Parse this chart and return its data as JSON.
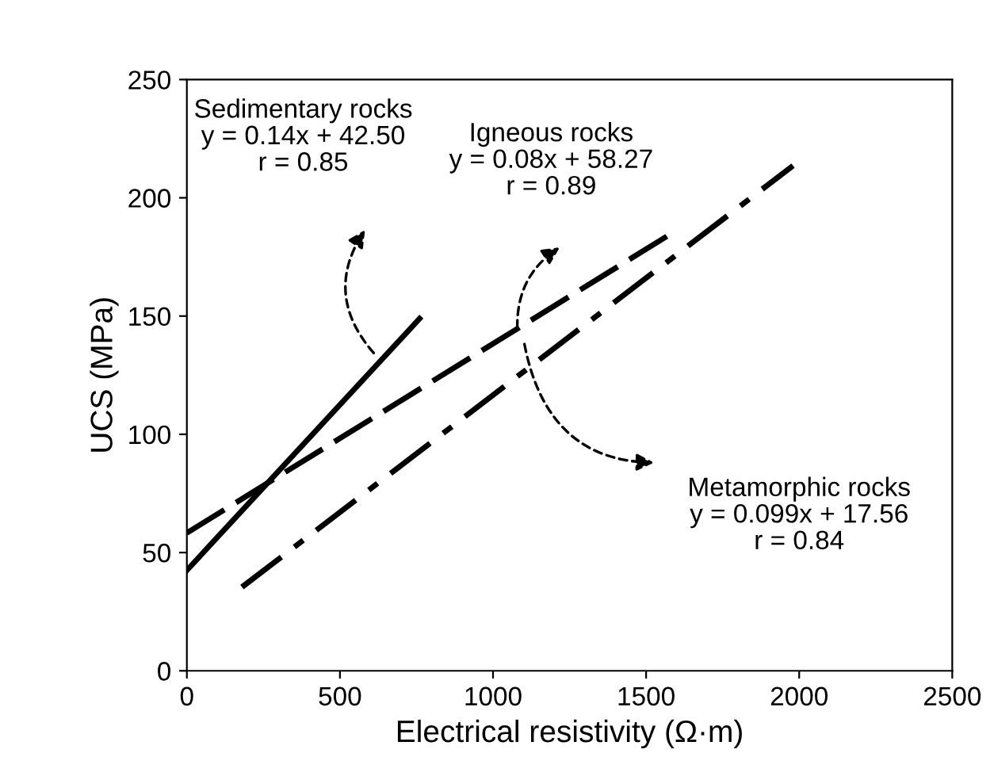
{
  "chart_data": {
    "type": "line",
    "xlabel": "Electrical resistivity (Ω·m)",
    "ylabel": "UCS (MPa)",
    "xlim": [
      0,
      2500
    ],
    "ylim": [
      0,
      250
    ],
    "xticks": [
      0,
      500,
      1000,
      1500,
      2000,
      2500
    ],
    "yticks": [
      0,
      50,
      100,
      150,
      200,
      250
    ],
    "grid": false,
    "series": [
      {
        "color": "#000000",
        "line_style": "solid",
        "x": [
          0,
          760
        ],
        "values": [
          42.5,
          148.9
        ]
      },
      {
        "color": "#000000",
        "line_style": "dashed",
        "x": [
          0,
          1570
        ],
        "values": [
          58.3,
          183.9
        ]
      },
      {
        "color": "#000000",
        "line_style": "dashdot",
        "x": [
          180,
          1980
        ],
        "values": [
          35.4,
          213.6
        ]
      }
    ],
    "annotations": [
      "Sedimentary rocks\ny = 0.14x + 42.50\nr = 0.85",
      "Igneous rocks\ny = 0.08x + 58.27\nr = 0.89",
      "Metamorphic rocks\ny = 0.099x + 17.56\nr = 0.84"
    ]
  }
}
